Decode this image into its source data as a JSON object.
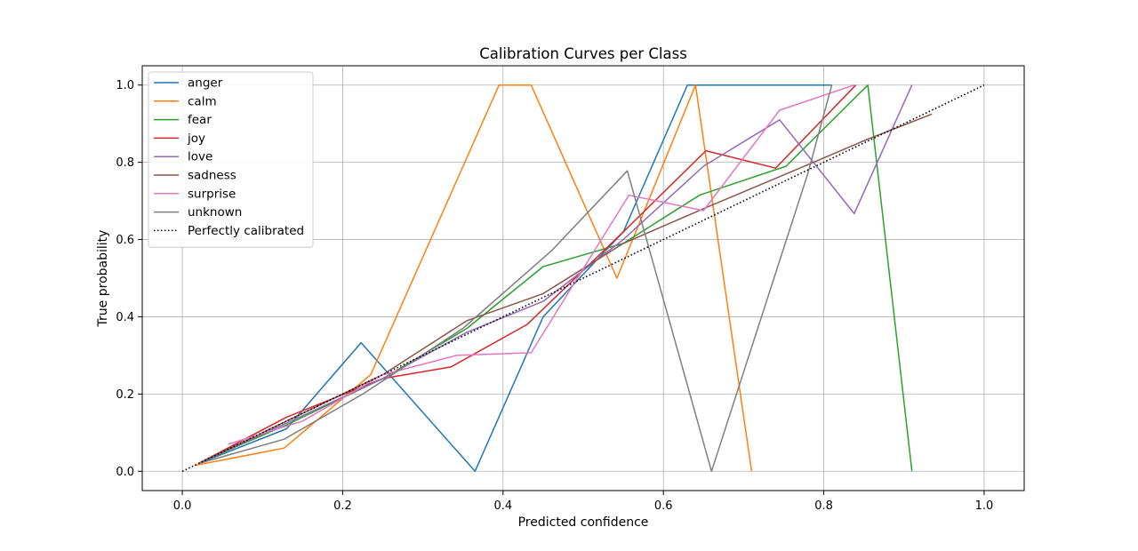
{
  "chart_data": {
    "type": "line",
    "title": "Calibration Curves per Class",
    "xlabel": "Predicted confidence",
    "ylabel": "True probability",
    "xlim": [
      -0.05,
      1.05
    ],
    "ylim": [
      -0.05,
      1.05
    ],
    "xticks": [
      "0.0",
      "0.2",
      "0.4",
      "0.6",
      "0.8",
      "1.0"
    ],
    "yticks": [
      "0.0",
      "0.2",
      "0.4",
      "0.6",
      "0.8",
      "1.0"
    ],
    "grid": true,
    "legend_position": "top-left",
    "series": [
      {
        "name": "anger",
        "color": "#1f77b4",
        "x": [
          0.02,
          0.13,
          0.223,
          0.365,
          0.45,
          0.55,
          0.63,
          0.645,
          0.81
        ],
        "y": [
          0.02,
          0.11,
          0.333,
          0.0,
          0.4,
          0.62,
          1.0,
          1.0,
          1.0
        ]
      },
      {
        "name": "calm",
        "color": "#ff7f0e",
        "x": [
          0.015,
          0.127,
          0.235,
          0.395,
          0.435,
          0.542,
          0.64,
          0.71
        ],
        "y": [
          0.015,
          0.06,
          0.25,
          1.0,
          1.0,
          0.5,
          1.0,
          0.0
        ]
      },
      {
        "name": "fear",
        "color": "#2ca02c",
        "x": [
          0.03,
          0.13,
          0.25,
          0.355,
          0.45,
          0.55,
          0.645,
          0.753,
          0.855,
          0.91
        ],
        "y": [
          0.03,
          0.12,
          0.24,
          0.37,
          0.53,
          0.59,
          0.715,
          0.79,
          1.0,
          0.0
        ]
      },
      {
        "name": "joy",
        "color": "#d62728",
        "x": [
          0.02,
          0.13,
          0.25,
          0.335,
          0.43,
          0.55,
          0.653,
          0.74,
          0.84
        ],
        "y": [
          0.02,
          0.14,
          0.24,
          0.27,
          0.38,
          0.62,
          0.83,
          0.785,
          1.0
        ]
      },
      {
        "name": "love",
        "color": "#9467bd",
        "x": [
          0.03,
          0.13,
          0.25,
          0.355,
          0.45,
          0.55,
          0.65,
          0.745,
          0.838,
          0.91
        ],
        "y": [
          0.03,
          0.125,
          0.24,
          0.36,
          0.44,
          0.6,
          0.79,
          0.91,
          0.667,
          1.0
        ]
      },
      {
        "name": "sadness",
        "color": "#8c564b",
        "x": [
          0.02,
          0.13,
          0.25,
          0.355,
          0.45,
          0.55,
          0.65,
          0.753,
          0.855,
          0.935
        ],
        "y": [
          0.02,
          0.13,
          0.25,
          0.39,
          0.46,
          0.59,
          0.68,
          0.77,
          0.86,
          0.925
        ]
      },
      {
        "name": "surprise",
        "color": "#e377c2",
        "x": [
          0.057,
          0.15,
          0.25,
          0.342,
          0.435,
          0.557,
          0.65,
          0.745,
          0.838
        ],
        "y": [
          0.07,
          0.13,
          0.25,
          0.3,
          0.307,
          0.715,
          0.675,
          0.935,
          1.0
        ]
      },
      {
        "name": "unknown",
        "color": "#7f7f7f",
        "x": [
          0.02,
          0.127,
          0.225,
          0.35,
          0.46,
          0.555,
          0.66,
          0.78,
          0.81
        ],
        "y": [
          0.02,
          0.083,
          0.2,
          0.37,
          0.57,
          0.778,
          0.0,
          0.77,
          1.0
        ]
      },
      {
        "name": "Perfectly calibrated",
        "color": "#000000",
        "dash": "dotted",
        "x": [
          0.0,
          1.0
        ],
        "y": [
          0.0,
          1.0
        ]
      }
    ]
  }
}
